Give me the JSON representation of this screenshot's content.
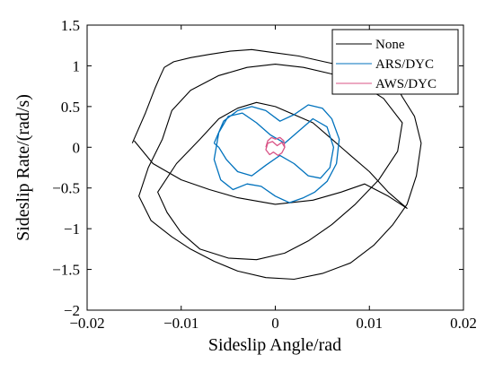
{
  "chart_data": {
    "type": "line",
    "title": "",
    "xlabel": "Sideslip Angle/rad",
    "ylabel": "Sideslip Rate/(rad/s)",
    "xlim": [
      -0.02,
      0.02
    ],
    "ylim": [
      -2,
      1.5
    ],
    "x_ticks": [
      -0.02,
      -0.01,
      0,
      0.01,
      0.02
    ],
    "x_tick_labels": [
      "−0.02",
      "−0.01",
      "0",
      "0.01",
      "0.02"
    ],
    "y_ticks": [
      1.5,
      1,
      0.5,
      0,
      -0.5,
      -1,
      -1.5,
      -2
    ],
    "y_tick_labels": [
      "1.5",
      "1",
      "0.5",
      "0",
      "−0.5",
      "−1",
      "−1.5",
      "−2"
    ],
    "grid": false,
    "legend_position": "top-right",
    "series": [
      {
        "name": "None",
        "color": "#000000",
        "x": [
          -0.0152,
          -0.0138,
          -0.0128,
          -0.0122,
          -0.0118,
          -0.0108,
          -0.009,
          -0.007,
          -0.0048,
          -0.0025,
          0.0,
          0.0025,
          0.0052,
          0.008,
          0.0105,
          0.0125,
          0.0135,
          0.0148,
          0.0155,
          0.015,
          0.014,
          0.0125,
          0.0105,
          0.008,
          0.005,
          0.002,
          -0.001,
          -0.004,
          -0.0065,
          -0.009,
          -0.011,
          -0.0132,
          -0.0145,
          -0.0135,
          -0.012,
          -0.011,
          -0.009,
          -0.006,
          -0.003,
          0.0,
          0.003,
          0.006,
          0.009,
          0.0115,
          0.0135,
          0.013,
          0.011,
          0.0085,
          0.006,
          0.0035,
          0.001,
          -0.002,
          -0.005,
          -0.008,
          -0.01,
          -0.0115,
          -0.0125,
          -0.0105,
          -0.008,
          -0.006,
          -0.004,
          -0.002,
          0.0,
          0.002,
          0.004,
          0.006,
          0.008,
          0.01,
          0.012,
          0.014,
          0.012,
          0.0095,
          0.007,
          0.004,
          0.0,
          -0.004,
          -0.007,
          -0.01,
          -0.013,
          -0.015
        ],
        "y": [
          0.05,
          0.42,
          0.72,
          0.88,
          0.98,
          1.05,
          1.1,
          1.14,
          1.18,
          1.2,
          1.16,
          1.12,
          1.05,
          0.98,
          0.92,
          0.82,
          0.62,
          0.38,
          0.05,
          -0.35,
          -0.7,
          -0.95,
          -1.2,
          -1.42,
          -1.55,
          -1.62,
          -1.6,
          -1.52,
          -1.4,
          -1.25,
          -1.1,
          -0.9,
          -0.6,
          -0.25,
          0.1,
          0.45,
          0.7,
          0.88,
          0.98,
          1.02,
          0.98,
          0.9,
          0.78,
          0.6,
          0.3,
          -0.05,
          -0.4,
          -0.7,
          -0.95,
          -1.15,
          -1.3,
          -1.38,
          -1.36,
          -1.25,
          -1.05,
          -0.8,
          -0.55,
          -0.2,
          0.1,
          0.35,
          0.48,
          0.55,
          0.5,
          0.4,
          0.3,
          0.1,
          -0.1,
          -0.3,
          -0.55,
          -0.75,
          -0.6,
          -0.45,
          -0.55,
          -0.65,
          -0.7,
          -0.62,
          -0.52,
          -0.4,
          -0.2,
          0.08
        ]
      },
      {
        "name": "ARS/DYC",
        "color": "#0072BD",
        "x": [
          -0.0065,
          -0.0055,
          -0.004,
          -0.0025,
          -0.001,
          0.0005,
          0.002,
          0.0035,
          0.005,
          0.006,
          0.0068,
          0.0065,
          0.0055,
          0.0042,
          0.003,
          0.0015,
          0.0,
          -0.0015,
          -0.003,
          -0.0045,
          -0.0058,
          -0.0065,
          -0.006,
          -0.005,
          -0.0035,
          -0.002,
          -0.0005,
          0.001,
          0.0025,
          0.004,
          0.0055,
          0.0062,
          0.0058,
          0.0048,
          0.0035,
          0.002,
          0.0005,
          -0.001,
          -0.0025,
          -0.004,
          -0.0052,
          -0.006,
          -0.0065
        ],
        "y": [
          0.05,
          0.32,
          0.45,
          0.5,
          0.45,
          0.32,
          0.4,
          0.52,
          0.48,
          0.35,
          0.1,
          -0.2,
          -0.42,
          -0.55,
          -0.62,
          -0.68,
          -0.6,
          -0.48,
          -0.45,
          -0.52,
          -0.4,
          -0.15,
          0.18,
          0.38,
          0.42,
          0.3,
          0.15,
          0.05,
          0.2,
          0.35,
          0.25,
          0.0,
          -0.25,
          -0.38,
          -0.35,
          -0.2,
          -0.1,
          -0.22,
          -0.35,
          -0.3,
          -0.15,
          0.0,
          0.05
        ]
      },
      {
        "name": "AWS/DYC",
        "color": "#D95386",
        "x": [
          -0.001,
          -0.0008,
          -0.0004,
          0.0,
          0.0005,
          0.0009,
          0.001,
          0.0007,
          0.0003,
          -0.0002,
          -0.0006,
          -0.001,
          -0.0008,
          -0.0003,
          0.0002,
          0.0007,
          0.001
        ],
        "y": [
          0.0,
          0.08,
          0.12,
          0.1,
          0.12,
          0.08,
          0.0,
          -0.07,
          -0.1,
          -0.06,
          -0.09,
          -0.03,
          0.05,
          0.07,
          0.02,
          0.06,
          0.0
        ]
      }
    ]
  }
}
